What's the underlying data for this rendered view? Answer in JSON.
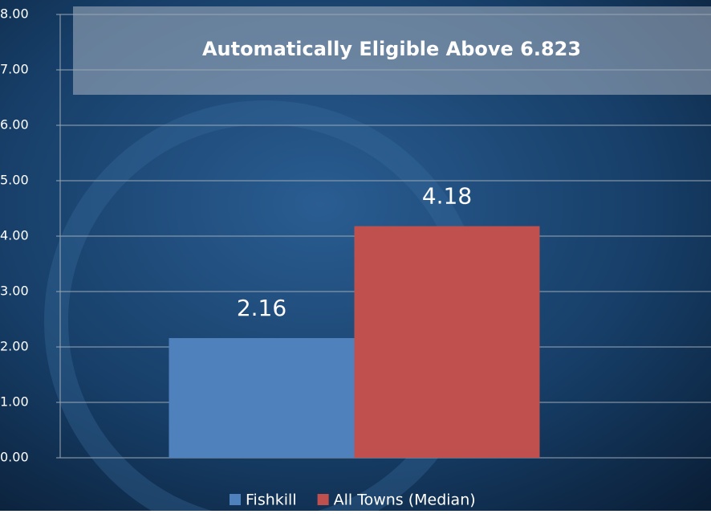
{
  "chart_data": {
    "type": "bar",
    "annotation": "Automatically Eligible Above 6.823",
    "categories": [
      null
    ],
    "series": [
      {
        "name": "Fishkill",
        "color": "#4f81bd",
        "values": [
          2.16
        ]
      },
      {
        "name": "All Towns (Median)",
        "color": "#c0504d",
        "values": [
          4.18
        ]
      }
    ],
    "ylim": [
      0,
      8
    ],
    "yticks": [
      {
        "value": 0,
        "label": "0.00"
      },
      {
        "value": 1,
        "label": "1.00"
      },
      {
        "value": 2,
        "label": "2.00"
      },
      {
        "value": 3,
        "label": "3.00"
      },
      {
        "value": 4,
        "label": "4.00"
      },
      {
        "value": 5,
        "label": "5.00"
      },
      {
        "value": 6,
        "label": "6.00"
      },
      {
        "value": 7,
        "label": "7.00"
      },
      {
        "value": 8,
        "label": "8.00"
      }
    ],
    "grid": true,
    "legend": "bottom"
  }
}
